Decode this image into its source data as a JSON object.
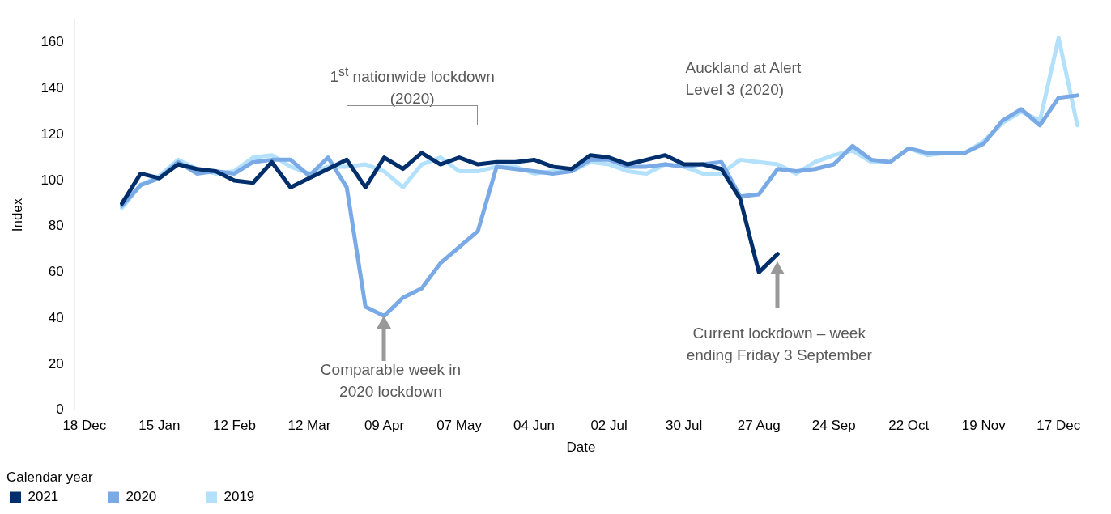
{
  "chart_data": {
    "type": "line",
    "xlabel": "Date",
    "ylabel": "Index",
    "legend_title": "Calendar year",
    "legend": "bottom left",
    "marker": "none",
    "line_style": "solid",
    "grid": false,
    "categories": [
      "18 Dec",
      null,
      null,
      null,
      "15 Jan",
      null,
      null,
      null,
      "12 Feb",
      null,
      null,
      null,
      "12 Mar",
      null,
      null,
      null,
      "09 Apr",
      null,
      null,
      null,
      "07 May",
      null,
      null,
      null,
      "04 Jun",
      null,
      null,
      null,
      "02 Jul",
      null,
      null,
      null,
      "30 Jul",
      null,
      null,
      null,
      "27 Aug",
      null,
      null,
      null,
      "24 Sep",
      null,
      null,
      null,
      "22 Oct",
      null,
      null,
      null,
      "19 Nov",
      null,
      null,
      null,
      "17 Dec",
      null
    ],
    "ylim": [
      0,
      170
    ],
    "yticks": [
      0,
      20,
      40,
      60,
      80,
      100,
      120,
      140,
      160
    ],
    "series": [
      {
        "name": "2021",
        "color": "#002f6c",
        "values": [
          null,
          null,
          90,
          103,
          101,
          107,
          105,
          104,
          100,
          99,
          108,
          97,
          101,
          105,
          109,
          97,
          110,
          105,
          112,
          107,
          110,
          107,
          108,
          108,
          109,
          106,
          105,
          111,
          110,
          107,
          109,
          111,
          107,
          107,
          105,
          92,
          60,
          68,
          null,
          null,
          null,
          null,
          null,
          null,
          null,
          null,
          null,
          null,
          null,
          null,
          null,
          null,
          null,
          null
        ]
      },
      {
        "name": "2020",
        "color": "#7aaae6",
        "values": [
          null,
          null,
          89,
          98,
          101,
          108,
          103,
          104,
          103,
          108,
          109,
          109,
          102,
          110,
          97,
          45,
          41,
          49,
          53,
          64,
          71,
          78,
          106,
          105,
          104,
          103,
          104,
          109,
          109,
          106,
          106,
          107,
          106,
          107,
          108,
          93,
          94,
          105,
          104,
          105,
          107,
          115,
          109,
          108,
          114,
          112,
          112,
          112,
          116,
          126,
          131,
          124,
          136,
          137
        ]
      },
      {
        "name": "2019",
        "color": "#b3e0fb",
        "values": [
          null,
          null,
          88,
          98,
          102,
          109,
          105,
          103,
          104,
          110,
          111,
          106,
          103,
          106,
          106,
          107,
          104,
          97,
          107,
          110,
          104,
          104,
          106,
          106,
          103,
          104,
          104,
          108,
          107,
          104,
          103,
          107,
          106,
          103,
          103,
          109,
          108,
          107,
          103,
          108,
          111,
          113,
          108,
          108,
          114,
          111,
          112,
          112,
          117,
          125,
          130,
          126,
          162,
          124
        ]
      }
    ],
    "annotations": [
      "1$^{st}$ nationwide lockdown (2020)",
      "Auckland at Alert Level 3 (2020)",
      "Comparable week in 2020 lockdown",
      "Current lockdown – week ending Friday 3 September"
    ]
  }
}
